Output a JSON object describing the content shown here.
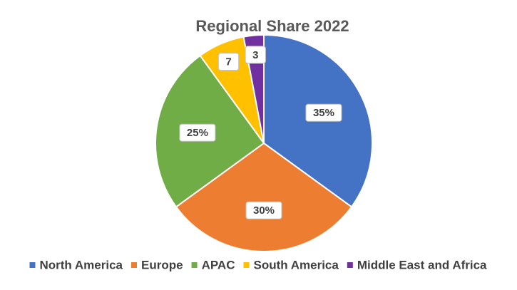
{
  "chart_data": {
    "type": "pie",
    "title": "Regional Share 2022",
    "categories": [
      "North America",
      "Europe",
      "APAC",
      "South America",
      "Middle East and Africa"
    ],
    "values": [
      35,
      30,
      25,
      7,
      3
    ],
    "value_labels": [
      "35%",
      "30%",
      "25%",
      "7",
      "3"
    ],
    "colors": [
      "#4472c4",
      "#ed7d31",
      "#70ad47",
      "#ffc000",
      "#7030a0"
    ],
    "legend": "bottom"
  }
}
